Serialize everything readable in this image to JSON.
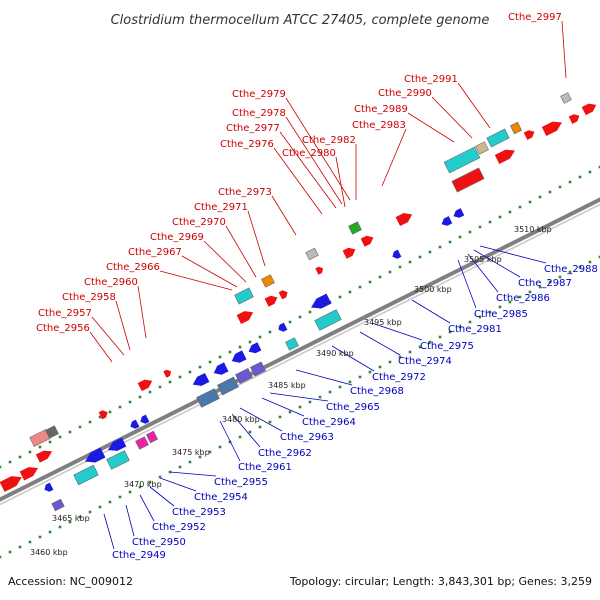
{
  "title": "Clostridium thermocellum ATCC 27405, complete genome",
  "accession": "Accession: NC_009012",
  "topology": "Topology: circular; Length: 3,843,301 bp; Genes: 3,259",
  "ticks": [
    "3460 kbp",
    "3465 kbp",
    "3470 kbp",
    "3475 kbp",
    "3480 kbp",
    "3485 kbp",
    "3490 kbp",
    "3495 kbp",
    "3500 kbp",
    "3505 kbp",
    "3510 kbp"
  ],
  "top_labels": [
    "Cthe_2956",
    "Cthe_2957",
    "Cthe_2958",
    "Cthe_2960",
    "Cthe_2966",
    "Cthe_2967",
    "Cthe_2969",
    "Cthe_2970",
    "Cthe_2971",
    "Cthe_2973",
    "Cthe_2976",
    "Cthe_2977",
    "Cthe_2978",
    "Cthe_2979",
    "Cthe_2980",
    "Cthe_2982",
    "Cthe_2983",
    "Cthe_2989",
    "Cthe_2990",
    "Cthe_2991",
    "Cthe_2997"
  ],
  "bottom_labels": [
    "Cthe_2949",
    "Cthe_2950",
    "Cthe_2952",
    "Cthe_2953",
    "Cthe_2954",
    "Cthe_2955",
    "Cthe_2961",
    "Cthe_2962",
    "Cthe_2963",
    "Cthe_2964",
    "Cthe_2965",
    "Cthe_2968",
    "Cthe_2972",
    "Cthe_2974",
    "Cthe_2975",
    "Cthe_2981",
    "Cthe_2985",
    "Cthe_2986",
    "Cthe_2987",
    "Cthe_2988"
  ],
  "colors": {
    "top_label": "#cc0000",
    "bottom_label": "#0000bb",
    "backbone": "#808080",
    "ruler_dots": "#2e8b2e",
    "gene_forward": "#ee1111",
    "gene_reverse": "#1a1ae0",
    "gene_cyan": "#22cccc",
    "gene_steel": "#4a78aa",
    "gene_violet": "#6a5acd",
    "gene_magenta": "#ee22aa",
    "gene_orange": "#ee8800",
    "gene_green": "#22aa22",
    "gene_grey": "#bbbbbb",
    "gene_tan": "#c8b88a",
    "gene_pink": "#ee8888"
  }
}
